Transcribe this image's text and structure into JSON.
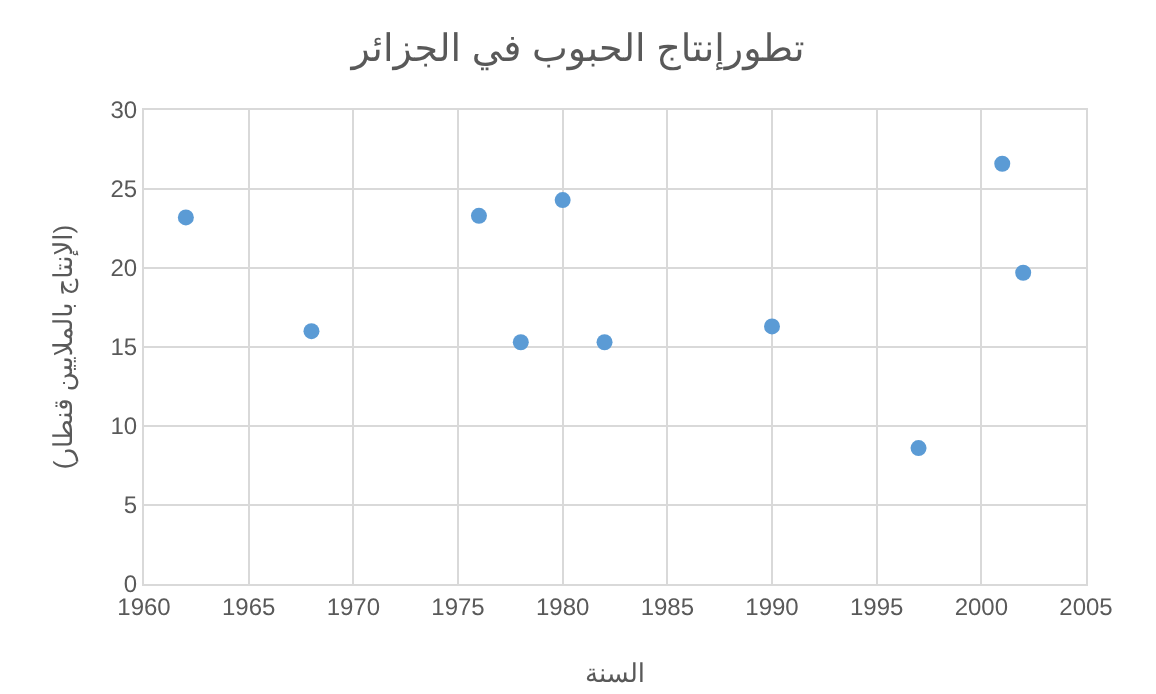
{
  "chart_data": {
    "type": "scatter",
    "title": "تطورإنتاج الحبوب في الجزائر",
    "xlabel": "السنة",
    "ylabel": "(الإنتاج بالملايين قنطار)",
    "x": [
      1962,
      1968,
      1976,
      1978,
      1980,
      1982,
      1990,
      1997,
      2001,
      2002
    ],
    "series": [
      {
        "color": "#5b9bd5",
        "values": [
          23.2,
          16,
          23.3,
          15.3,
          24.3,
          15.3,
          16.3,
          8.6,
          26.6,
          19.7
        ]
      }
    ],
    "xlim": [
      1960,
      2005
    ],
    "xticks": [
      1960,
      1965,
      1970,
      1975,
      1980,
      1985,
      1990,
      1995,
      2000,
      2005
    ],
    "ylim": [
      0,
      30
    ],
    "yticks": [
      0,
      5,
      10,
      15,
      20,
      25,
      30
    ],
    "grid": true,
    "marker": "circle"
  }
}
